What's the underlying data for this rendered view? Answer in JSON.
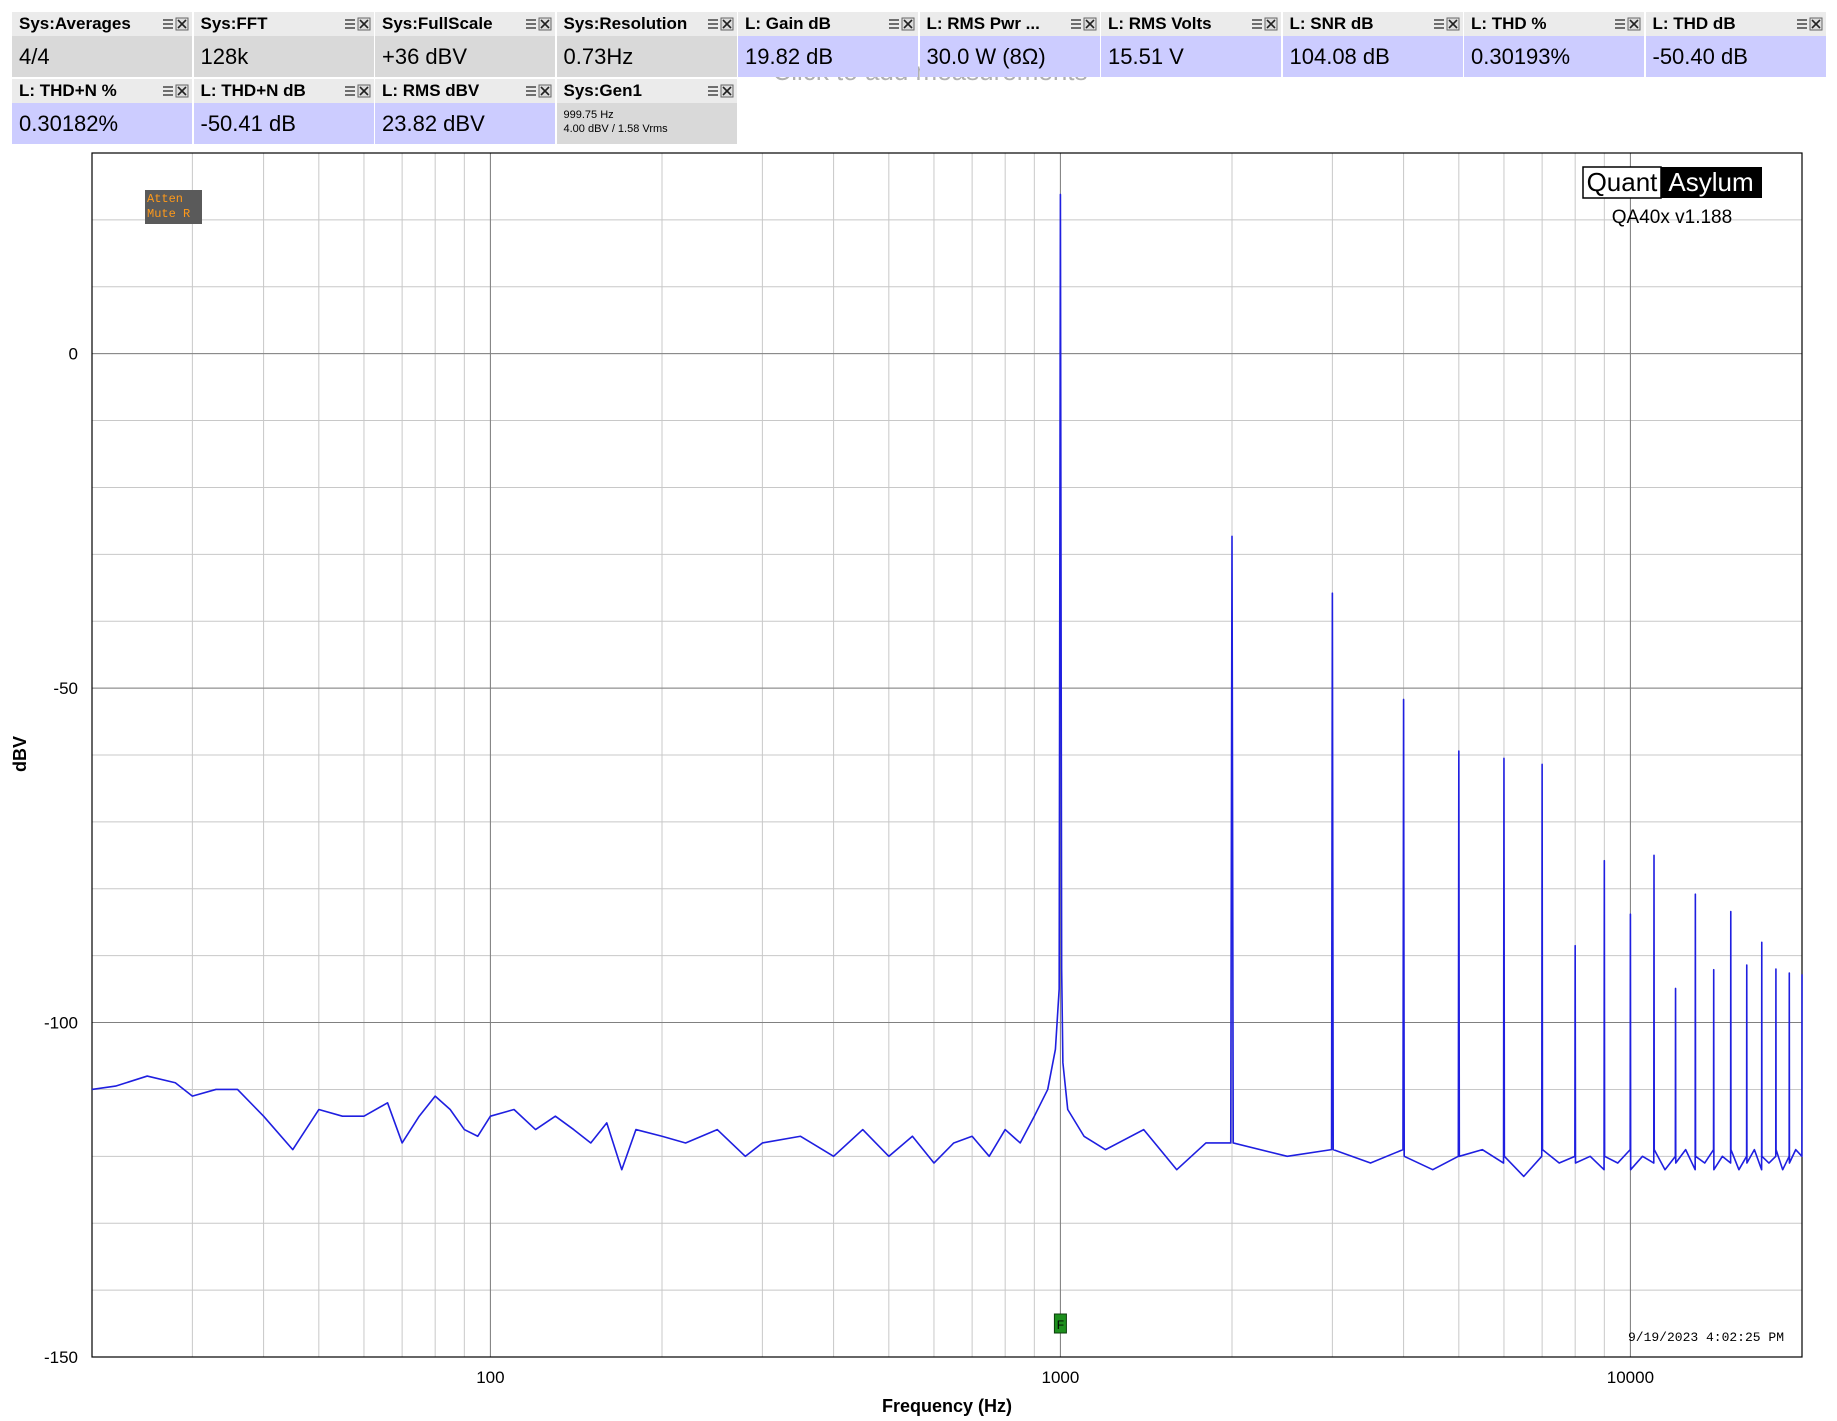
{
  "measurements": [
    [
      {
        "label": "Sys:Averages",
        "value": "4/4",
        "color": "#d9d9d9"
      },
      {
        "label": "Sys:FFT",
        "value": "128k",
        "color": "#d9d9d9"
      },
      {
        "label": "Sys:FullScale",
        "value": "+36 dBV",
        "color": "#d9d9d9"
      },
      {
        "label": "Sys:Resolution",
        "value": "0.73Hz",
        "color": "#d9d9d9"
      },
      {
        "label": "L: Gain dB",
        "value": "19.82 dB",
        "color": "#ccccff"
      },
      {
        "label": "L: RMS Pwr ...",
        "value": "30.0 W (8Ω)",
        "color": "#ccccff"
      },
      {
        "label": "L: RMS Volts",
        "value": "15.51 V",
        "color": "#ccccff"
      },
      {
        "label": "L: SNR dB",
        "value": "104.08 dB",
        "color": "#ccccff"
      },
      {
        "label": "L: THD %",
        "value": "0.30193%",
        "color": "#ccccff"
      },
      {
        "label": "L: THD dB",
        "value": "-50.40 dB",
        "color": "#ccccff"
      }
    ],
    [
      {
        "label": "L: THD+N %",
        "value": "0.30182%",
        "color": "#ccccff"
      },
      {
        "label": "L: THD+N dB",
        "value": "-50.41 dB",
        "color": "#ccccff"
      },
      {
        "label": "L: RMS dBV",
        "value": "23.82 dBV",
        "color": "#ccccff"
      },
      {
        "label": "Sys:Gen1",
        "details": [
          "999.75 Hz",
          "4.00 dBV  / 1.58 Vrms"
        ],
        "color": "#d9d9d9"
      }
    ]
  ],
  "add_hint": "Click to add measurements",
  "logo": {
    "left": "Quant",
    "right": "Asylum",
    "version": "QA40x v1.188"
  },
  "badge": [
    "Atten",
    "Mute R"
  ],
  "timestamp": "9/19/2023 4:02:25 PM",
  "chart_data": {
    "type": "line",
    "x_label": "Frequency (Hz)",
    "y_label": "dBV",
    "log_x": true,
    "grid": true,
    "ygrid_step": 10,
    "color": "#1f1fe0",
    "xlim": [
      20,
      20000
    ],
    "ylim": [
      -150,
      30
    ],
    "xticks": [
      100,
      1000,
      10000
    ],
    "yticks": [
      0,
      -50,
      -100,
      -150
    ],
    "marker": {
      "label": "F",
      "x": 1000
    },
    "x": [
      20,
      22,
      25,
      28,
      30,
      33,
      36,
      40,
      45,
      50,
      55,
      60,
      66,
      70,
      75,
      80,
      85,
      90,
      95,
      100,
      110,
      120,
      130,
      140,
      150,
      160,
      170,
      180,
      200,
      220,
      250,
      280,
      300,
      350,
      400,
      450,
      500,
      550,
      600,
      650,
      700,
      750,
      800,
      850,
      900,
      950,
      980,
      995,
      1000,
      1005,
      1010,
      1030,
      1100,
      1200,
      1400,
      1600,
      1800,
      1990,
      2000,
      2010,
      2500,
      2990,
      3000,
      3010,
      3500,
      3990,
      4000,
      4010,
      4500,
      4990,
      5000,
      5010,
      5500,
      5990,
      6000,
      6010,
      6500,
      6990,
      7000,
      7010,
      7500,
      7990,
      8000,
      8010,
      8500,
      8990,
      9000,
      9010,
      9500,
      9990,
      10000,
      10010,
      10500,
      10990,
      11000,
      11010,
      11500,
      11990,
      12000,
      12010,
      12500,
      12990,
      13000,
      13010,
      13500,
      13990,
      14000,
      14010,
      14500,
      14990,
      15000,
      15010,
      15500,
      15990,
      16000,
      16010,
      16500,
      16990,
      17000,
      17010,
      17500,
      17990,
      18000,
      18010,
      18500,
      18990,
      19000,
      19010,
      19500,
      19990,
      20000
    ],
    "values": [
      -110,
      -109.5,
      -108,
      -109,
      -111,
      -110,
      -110,
      -114,
      -119,
      -113,
      -114,
      -114,
      -112,
      -118,
      -114,
      -111,
      -113,
      -116,
      -117,
      -114,
      -113,
      -116,
      -114,
      -116,
      -118,
      -115,
      -122,
      -116,
      -117,
      -118,
      -116,
      -120,
      -118,
      -117,
      -120,
      -116,
      -120,
      -117,
      -121,
      -118,
      -117,
      -120,
      -116,
      -118,
      -114,
      -110,
      -104,
      -95,
      23.8,
      -92,
      -106,
      -113,
      -117,
      -119,
      -116,
      -122,
      -118,
      -118,
      -27.3,
      -118,
      -120,
      -119,
      -35.8,
      -119,
      -121,
      -119,
      -51.7,
      -120,
      -122,
      -120,
      -59.4,
      -120,
      -119,
      -121,
      -60.5,
      -120,
      -123,
      -120,
      -61.4,
      -119,
      -121,
      -120,
      -88.5,
      -121,
      -120,
      -122,
      -75.8,
      -120,
      -121,
      -119,
      -83.8,
      -122,
      -120,
      -121,
      -75,
      -119,
      -122,
      -120,
      -94.9,
      -121,
      -119,
      -122,
      -80.8,
      -120,
      -121,
      -119,
      -92.1,
      -122,
      -120,
      -121,
      -83.4,
      -119,
      -122,
      -120,
      -91.4,
      -121,
      -119,
      -122,
      -88,
      -120,
      -121,
      -120,
      -92,
      -119,
      -122,
      -120,
      -92.6,
      -121,
      -119,
      -120,
      -92.8
    ]
  }
}
